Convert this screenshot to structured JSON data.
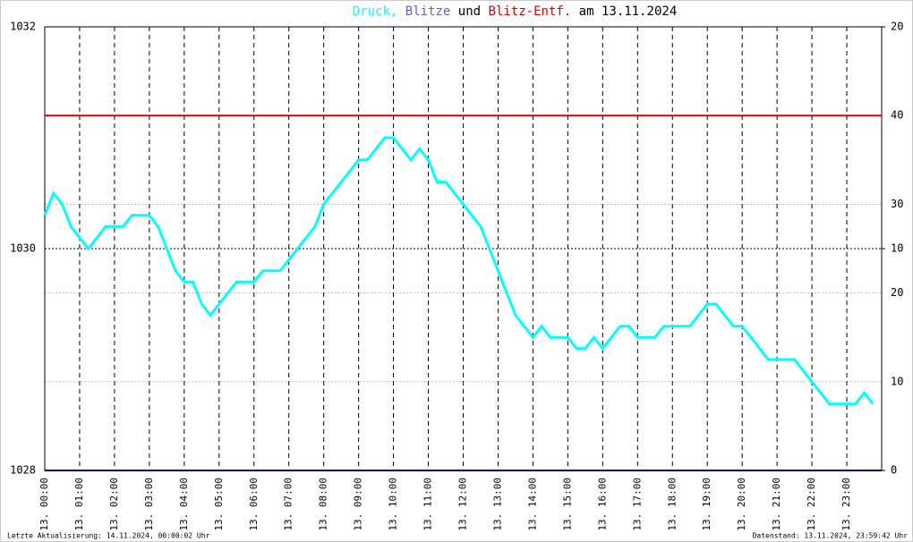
{
  "chart_data": {
    "type": "line",
    "title_parts": [
      {
        "text": "Druck,",
        "color": "#00ffff"
      },
      {
        "text": "Blitze",
        "color": "#6a5acd"
      },
      {
        "text": "und",
        "color": "#000000"
      },
      {
        "text": "Blitz-Entf.",
        "color": "#e00000"
      },
      {
        "text": "am 13.11.2024",
        "color": "#000000"
      }
    ],
    "xlim": [
      0,
      24
    ],
    "xticks": [
      {
        "value": 0,
        "label": "13. 00:00"
      },
      {
        "value": 1,
        "label": "13. 01:00"
      },
      {
        "value": 2,
        "label": "13. 02:00"
      },
      {
        "value": 3,
        "label": "13. 03:00"
      },
      {
        "value": 4,
        "label": "13. 04:00"
      },
      {
        "value": 5,
        "label": "13. 05:00"
      },
      {
        "value": 6,
        "label": "13. 06:00"
      },
      {
        "value": 7,
        "label": "13. 07:00"
      },
      {
        "value": 8,
        "label": "13. 08:00"
      },
      {
        "value": 9,
        "label": "13. 09:00"
      },
      {
        "value": 10,
        "label": "13. 10:00"
      },
      {
        "value": 11,
        "label": "13. 11:00"
      },
      {
        "value": 12,
        "label": "13. 12:00"
      },
      {
        "value": 13,
        "label": "13. 13:00"
      },
      {
        "value": 14,
        "label": "13. 14:00"
      },
      {
        "value": 15,
        "label": "13. 15:00"
      },
      {
        "value": 16,
        "label": "13. 16:00"
      },
      {
        "value": 17,
        "label": "13. 17:00"
      },
      {
        "value": 18,
        "label": "13. 18:00"
      },
      {
        "value": 19,
        "label": "13. 19:00"
      },
      {
        "value": 20,
        "label": "13. 20:00"
      },
      {
        "value": 21,
        "label": "13. 21:00"
      },
      {
        "value": 22,
        "label": "13. 22:00"
      },
      {
        "value": 23,
        "label": "13. 23:00"
      }
    ],
    "ylim": [
      1028,
      1032
    ],
    "yticks": [
      1028,
      1030,
      1032
    ],
    "y2lim": [
      0,
      20
    ],
    "y2ticks": [
      0,
      10,
      20
    ],
    "y3lim": [
      0,
      50
    ],
    "y3ticks": [
      10,
      20,
      30,
      40
    ],
    "y3tick_colors": [
      "#000000",
      "#000000",
      "#000000",
      "#e00000"
    ],
    "series": [
      {
        "color": "#00ffff",
        "x": [
          0,
          0.25,
          0.5,
          0.75,
          1,
          1.25,
          1.5,
          1.75,
          2,
          2.25,
          2.5,
          2.75,
          3,
          3.25,
          3.5,
          3.75,
          4,
          4.25,
          4.5,
          4.75,
          5,
          5.25,
          5.5,
          5.75,
          6,
          6.25,
          6.5,
          6.75,
          7,
          7.25,
          7.5,
          7.75,
          8,
          8.25,
          8.5,
          8.75,
          9,
          9.25,
          9.5,
          9.75,
          10,
          10.25,
          10.5,
          10.75,
          11,
          11.25,
          11.5,
          11.75,
          12,
          12.25,
          12.5,
          12.75,
          13,
          13.25,
          13.5,
          13.75,
          14,
          14.25,
          14.5,
          14.75,
          15,
          15.25,
          15.5,
          15.75,
          16,
          16.25,
          16.5,
          16.75,
          17,
          17.25,
          17.5,
          17.75,
          18,
          18.25,
          18.5,
          18.75,
          19,
          19.25,
          19.5,
          19.75,
          20,
          20.25,
          20.5,
          20.75,
          21,
          21.25,
          21.5,
          21.75,
          22,
          22.25,
          22.5,
          22.75,
          23,
          23.25,
          23.5,
          23.75
        ],
        "values": [
          1030.3,
          1030.5,
          1030.4,
          1030.2,
          1030.1,
          1030.0,
          1030.1,
          1030.2,
          1030.2,
          1030.2,
          1030.3,
          1030.3,
          1030.3,
          1030.2,
          1030.0,
          1029.8,
          1029.7,
          1029.7,
          1029.5,
          1029.4,
          1029.5,
          1029.6,
          1029.7,
          1029.7,
          1029.7,
          1029.8,
          1029.8,
          1029.8,
          1029.9,
          1030.0,
          1030.1,
          1030.2,
          1030.4,
          1030.5,
          1030.6,
          1030.7,
          1030.8,
          1030.8,
          1030.9,
          1031.0,
          1031.0,
          1030.9,
          1030.8,
          1030.9,
          1030.8,
          1030.6,
          1030.6,
          1030.5,
          1030.4,
          1030.3,
          1030.2,
          1030.0,
          1029.8,
          1029.6,
          1029.4,
          1029.3,
          1029.2,
          1029.3,
          1029.2,
          1029.2,
          1029.2,
          1029.1,
          1029.1,
          1029.2,
          1029.1,
          1029.2,
          1029.3,
          1029.3,
          1029.2,
          1029.2,
          1029.2,
          1029.3,
          1029.3,
          1029.3,
          1029.3,
          1029.4,
          1029.5,
          1029.5,
          1029.4,
          1029.3,
          1029.3,
          1029.2,
          1029.1,
          1029.0,
          1029.0,
          1029.0,
          1029.0,
          1028.9,
          1028.8,
          1028.7,
          1028.6,
          1028.6,
          1028.6,
          1028.6,
          1028.7,
          1028.6
        ]
      },
      {
        "color": "#000080",
        "axis": "y2",
        "x": [
          0,
          24
        ],
        "values": [
          0,
          0
        ]
      },
      {
        "color": "#e00000",
        "axis": "y3",
        "x": [
          0,
          24
        ],
        "values": [
          40,
          40
        ]
      }
    ],
    "footer_left": "Letzte Aktualisierung: 14.11.2024, 00:00:02 Uhr",
    "footer_right": "Datenstand: 13.11.2024, 23:59:42 Uhr"
  }
}
